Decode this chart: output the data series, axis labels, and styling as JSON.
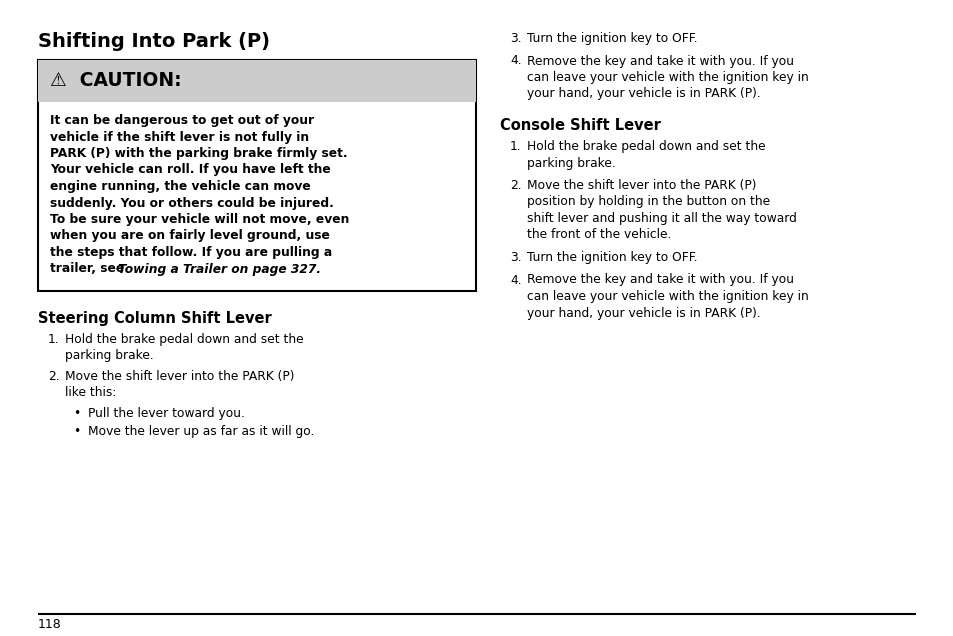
{
  "bg_color": "#ffffff",
  "text_color": "#000000",
  "page_number": "118",
  "title": "Shifting Into Park (P)",
  "caution_header": "⚠  CAUTION:",
  "caution_bg": "#cccccc",
  "caution_body_lines": [
    "It can be dangerous to get out of your",
    "vehicle if the shift lever is not fully in",
    "PARK (P) with the parking brake firmly set.",
    "Your vehicle can roll. If you have left the",
    "engine running, the vehicle can move",
    "suddenly. You or others could be injured.",
    "To be sure your vehicle will not move, even",
    "when you are on fairly level ground, use",
    "the steps that follow. If you are pulling a",
    "trailer, see "
  ],
  "caution_body_italic": "Towing a Trailer on page 327.",
  "left_section_heading": "Steering Column Shift Lever",
  "right_items_top": [
    [
      "3.",
      "Turn the ignition key to OFF."
    ],
    [
      "4.",
      "Remove the key and take it with you. If you\ncan leave your vehicle with the ignition key in\nyour hand, your vehicle is in PARK (P)."
    ]
  ],
  "right_section_heading": "Console Shift Lever",
  "right_items_bottom": [
    [
      "1.",
      "Hold the brake pedal down and set the\nparking brake."
    ],
    [
      "2.",
      "Move the shift lever into the PARK (P)\nposition by holding in the button on the\nshift lever and pushing it all the way toward\nthe front of the vehicle."
    ],
    [
      "3.",
      "Turn the ignition key to OFF."
    ],
    [
      "4.",
      "Remove the key and take it with you. If you\ncan leave your vehicle with the ignition key in\nyour hand, your vehicle is in PARK (P)."
    ]
  ],
  "left_items": [
    [
      "1.",
      "Hold the brake pedal down and set the\nparking brake."
    ],
    [
      "2.",
      "Move the shift lever into the PARK (P)\nlike this:"
    ],
    [
      "•",
      "Pull the lever toward you."
    ],
    [
      "•",
      "Move the lever up as far as it will go."
    ]
  ]
}
